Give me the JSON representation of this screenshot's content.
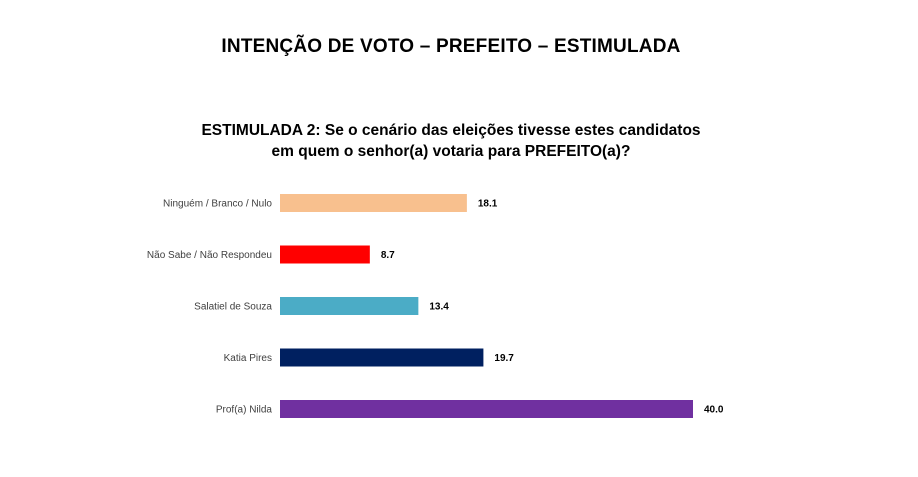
{
  "header": {
    "title": "INTENÇÃO DE VOTO – PREFEITO – ESTIMULADA"
  },
  "question": {
    "line1": "ESTIMULADA 2: Se o cenário das eleições tivesse estes candidatos",
    "line2": "em quem o senhor(a) votaria para PREFEITO(a)?"
  },
  "chart_data": {
    "type": "bar",
    "orientation": "horizontal",
    "categories": [
      "Ninguém / Branco / Nulo",
      "Não Sabe / Não Respondeu",
      "Salatiel de Souza",
      "Katia Pires",
      "Prof(a) Nilda"
    ],
    "values": [
      18.1,
      8.7,
      13.4,
      19.7,
      40.0
    ],
    "value_labels": [
      "18.1",
      "8.7",
      "13.4",
      "19.7",
      "40.0"
    ],
    "colors": [
      "#F8C08E",
      "#FF0000",
      "#4BACC6",
      "#002060",
      "#7030A0"
    ],
    "xlim": [
      0,
      40
    ],
    "grid": false,
    "legend": "none"
  }
}
